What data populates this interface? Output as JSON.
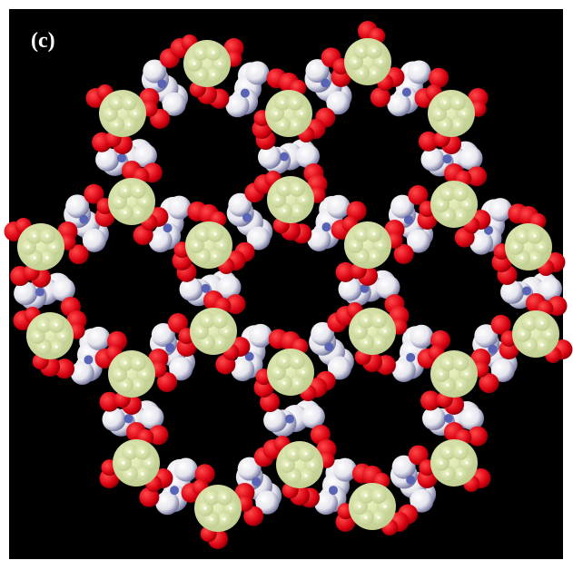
{
  "label": "(c)"
}
